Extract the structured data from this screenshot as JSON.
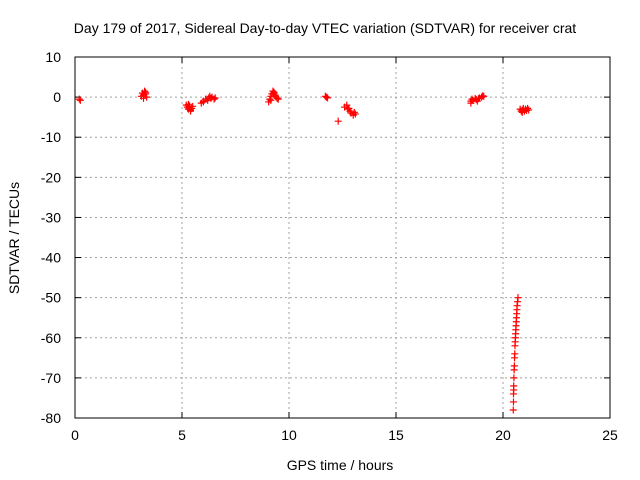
{
  "chart_data": {
    "type": "scatter",
    "title": "Day 179 of 2017, Sidereal Day-to-day VTEC variation (SDTVAR) for receiver crat",
    "xlabel": "GPS time / hours",
    "ylabel": "SDTVAR / TECUs",
    "xlim": [
      0,
      25
    ],
    "ylim": [
      -80,
      10
    ],
    "xticks": [
      0,
      5,
      10,
      15,
      20,
      25
    ],
    "yticks": [
      10,
      0,
      -10,
      -20,
      -30,
      -40,
      -50,
      -60,
      -70,
      -80
    ],
    "grid": true,
    "marker": "+",
    "color": "#ff0000",
    "series": [
      {
        "name": "SDTVAR",
        "points": [
          [
            0.2,
            -0.5
          ],
          [
            0.25,
            -0.8
          ],
          [
            3.1,
            0.2
          ],
          [
            3.15,
            1.0
          ],
          [
            3.2,
            0.5
          ],
          [
            3.25,
            1.5
          ],
          [
            3.3,
            0.8
          ],
          [
            3.35,
            0.0
          ],
          [
            3.2,
            -0.3
          ],
          [
            3.3,
            1.2
          ],
          [
            5.2,
            -2.0
          ],
          [
            5.25,
            -2.5
          ],
          [
            5.3,
            -3.0
          ],
          [
            5.35,
            -2.2
          ],
          [
            5.4,
            -3.5
          ],
          [
            5.45,
            -2.8
          ],
          [
            5.5,
            -2.3
          ],
          [
            5.3,
            -1.8
          ],
          [
            5.4,
            -3.2
          ],
          [
            5.9,
            -1.5
          ],
          [
            6.0,
            -1.0
          ],
          [
            6.1,
            -0.5
          ],
          [
            6.2,
            -0.8
          ],
          [
            6.25,
            -0.2
          ],
          [
            6.3,
            0.2
          ],
          [
            6.35,
            -0.3
          ],
          [
            6.4,
            0.0
          ],
          [
            6.5,
            -0.5
          ],
          [
            6.55,
            -0.2
          ],
          [
            6.0,
            -1.2
          ],
          [
            9.05,
            -1.2
          ],
          [
            9.1,
            -0.5
          ],
          [
            9.15,
            0.2
          ],
          [
            9.2,
            0.8
          ],
          [
            9.25,
            1.5
          ],
          [
            9.3,
            1.0
          ],
          [
            9.35,
            0.5
          ],
          [
            9.4,
            0.0
          ],
          [
            9.45,
            -0.3
          ],
          [
            9.5,
            -0.5
          ],
          [
            9.15,
            -0.8
          ],
          [
            9.3,
            1.2
          ],
          [
            11.7,
            0.2
          ],
          [
            11.75,
            0.0
          ],
          [
            11.8,
            -0.2
          ],
          [
            12.3,
            -6.0
          ],
          [
            12.6,
            -2.5
          ],
          [
            12.7,
            -2.0
          ],
          [
            12.75,
            -3.0
          ],
          [
            12.8,
            -2.8
          ],
          [
            12.85,
            -3.5
          ],
          [
            12.9,
            -4.0
          ],
          [
            13.0,
            -4.5
          ],
          [
            13.05,
            -3.8
          ],
          [
            13.1,
            -4.2
          ],
          [
            18.5,
            -1.0
          ],
          [
            18.55,
            -0.5
          ],
          [
            18.6,
            -0.8
          ],
          [
            18.7,
            -0.3
          ],
          [
            18.75,
            -0.6
          ],
          [
            18.8,
            -1.0
          ],
          [
            18.85,
            -0.4
          ],
          [
            18.9,
            -0.2
          ],
          [
            19.0,
            0.0
          ],
          [
            19.05,
            0.3
          ],
          [
            19.1,
            0.2
          ],
          [
            18.5,
            -1.5
          ],
          [
            20.8,
            -3.0
          ],
          [
            20.85,
            -3.5
          ],
          [
            20.9,
            -3.2
          ],
          [
            20.95,
            -2.8
          ],
          [
            21.0,
            -3.5
          ],
          [
            21.05,
            -3.0
          ],
          [
            21.1,
            -3.3
          ],
          [
            21.15,
            -2.8
          ],
          [
            21.2,
            -3.2
          ],
          [
            20.9,
            -3.8
          ],
          [
            20.7,
            -50
          ],
          [
            20.68,
            -51
          ],
          [
            20.66,
            -52
          ],
          [
            20.65,
            -53
          ],
          [
            20.64,
            -54
          ],
          [
            20.63,
            -55
          ],
          [
            20.62,
            -56
          ],
          [
            20.61,
            -57
          ],
          [
            20.6,
            -58
          ],
          [
            20.59,
            -59
          ],
          [
            20.58,
            -60
          ],
          [
            20.57,
            -61
          ],
          [
            20.56,
            -62
          ],
          [
            20.55,
            -64
          ],
          [
            20.54,
            -65
          ],
          [
            20.53,
            -67
          ],
          [
            20.52,
            -68
          ],
          [
            20.51,
            -70
          ],
          [
            20.5,
            -72
          ],
          [
            20.5,
            -73
          ],
          [
            20.49,
            -74
          ],
          [
            20.49,
            -76
          ],
          [
            20.48,
            -78
          ]
        ]
      }
    ]
  }
}
